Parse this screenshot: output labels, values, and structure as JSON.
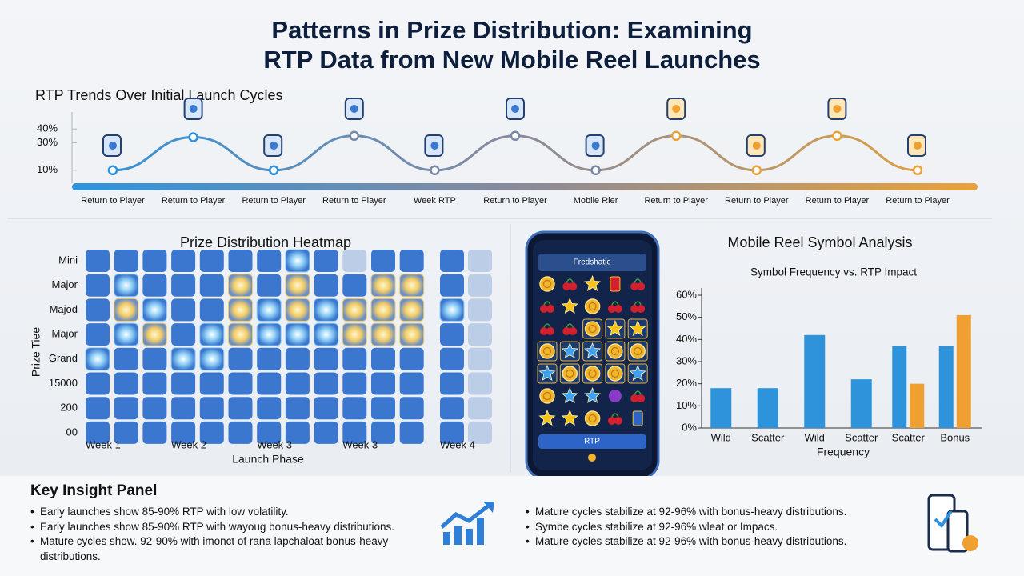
{
  "title": [
    "Patterns in Prize Distribution: Examining",
    "RTP Data from New Mobile Reel Launches"
  ],
  "chart_data": [
    {
      "type": "line",
      "title": "RTP Trends Over Initial Launch Cycles",
      "categories": [
        "Return to Player",
        "Return to Player",
        "Return to Player",
        "Return to Player",
        "Week RTP",
        "Return to Player",
        "Mobile Rier",
        "Return to Player",
        "Return to Player",
        "Return to Player",
        "Return to Player"
      ],
      "values": [
        10,
        34,
        10,
        35,
        10,
        35,
        10,
        35,
        10,
        35,
        10
      ],
      "colors": [
        "#2f93dc",
        "#8a8a9a",
        "#e8a23a"
      ],
      "ylim": [
        0,
        45
      ],
      "yticks": [
        {
          "value": 10,
          "label": "10%"
        },
        {
          "value": 30,
          "label": "30%"
        },
        {
          "value": 40,
          "label": "40%"
        }
      ]
    },
    {
      "type": "heatmap",
      "title": "Prize Distribution Heatmap",
      "xlabel": "Launch Phase",
      "ylabel": "Prize Tiee",
      "rows": [
        "Mini",
        "Major",
        "Majod",
        "Major",
        "Grand",
        "15000",
        "200",
        "00"
      ],
      "columns": [
        "Week 1",
        null,
        null,
        "Week 2",
        null,
        null,
        "Week 3",
        null,
        null,
        "Week 3",
        null,
        null,
        "Week 4",
        null
      ],
      "values": [
        [
          0,
          0,
          0,
          0,
          0,
          0,
          0,
          1,
          0,
          3,
          0,
          0,
          0,
          3
        ],
        [
          0,
          1,
          0,
          0,
          0,
          2,
          0,
          2,
          0,
          0,
          2,
          2,
          0,
          3
        ],
        [
          0,
          2,
          1,
          0,
          0,
          2,
          1,
          2,
          1,
          2,
          2,
          2,
          1,
          3
        ],
        [
          0,
          1,
          2,
          0,
          1,
          2,
          1,
          1,
          1,
          2,
          2,
          2,
          0,
          3
        ],
        [
          1,
          0,
          0,
          1,
          1,
          0,
          0,
          0,
          0,
          0,
          0,
          0,
          0,
          3
        ],
        [
          0,
          0,
          0,
          0,
          0,
          0,
          0,
          0,
          0,
          0,
          0,
          0,
          0,
          3
        ],
        [
          0,
          0,
          0,
          0,
          0,
          0,
          0,
          0,
          0,
          0,
          0,
          0,
          0,
          3
        ],
        [
          0,
          0,
          0,
          0,
          0,
          0,
          0,
          0,
          0,
          0,
          0,
          0,
          0,
          3
        ]
      ],
      "colors": [
        "#3c77cf",
        "#8fd0f6",
        "#f2cd66",
        "#bccde8"
      ]
    },
    {
      "type": "bar",
      "title": "Mobile Reel Symbol Analysis",
      "subtitle": "Symbol Frequency vs. RTP Impact",
      "xlabel": "Frequency",
      "categories": [
        "Wild",
        "Scatter",
        "Wild",
        "Scatter",
        "Scatter",
        "Bonus"
      ],
      "series": [
        {
          "color": "#2f93dc",
          "values": [
            18,
            18,
            42,
            22,
            37,
            37
          ]
        },
        {
          "color": "#f0a030",
          "values": [
            null,
            null,
            null,
            null,
            20,
            51
          ]
        }
      ],
      "ylim": [
        0,
        60
      ],
      "yticks": [
        {
          "value": 0,
          "label": "0%"
        },
        {
          "value": 10,
          "label": "10%"
        },
        {
          "value": 20,
          "label": "20%"
        },
        {
          "value": 30,
          "label": "30%"
        },
        {
          "value": 40,
          "label": "40%"
        },
        {
          "value": 50,
          "label": "50%"
        },
        {
          "value": 60,
          "label": "60%"
        }
      ]
    }
  ],
  "phone": {
    "header": "Fredshatic",
    "button": "RTP"
  },
  "insight_panel": {
    "title": "Key Insight Panel",
    "left": [
      "Early launches show 85-90% RTP with low volatility.",
      "Early launches show 85-90% RTP with wayoug bonus-heavy distributions.",
      "Mature cycles show. 92-90% with imonct of rana lapchaloat bonus-heavy distributions."
    ],
    "right": [
      "Mature cycles stabilize at 92-96% with bonus-heavy distributions.",
      "Symbe cycles stabilize at 92-96% wleat or Impacs.",
      "Mature cycles stabilize at 92-96% with bonus-heavy distributions."
    ]
  }
}
